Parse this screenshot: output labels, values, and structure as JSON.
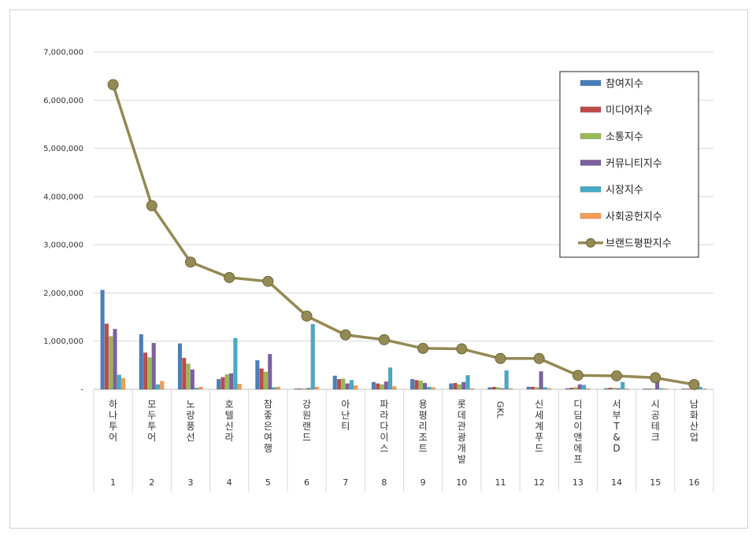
{
  "chart_data": {
    "type": "bar",
    "y_ticks": [
      "7,000,000",
      "6,000,000",
      "5,000,000",
      "4,000,000",
      "3,000,000",
      "2,000,000",
      "1,000,000",
      "-"
    ],
    "ylim": [
      0,
      7000000
    ],
    "grid": true,
    "legend_position": "top-right",
    "categories": [
      "하나투어",
      "모두투어",
      "노랑풍선",
      "호텔신라",
      "참좋은여행",
      "강원랜드",
      "아난티",
      "파라다이스",
      "용평리조트",
      "롯데관광개발",
      "GKL",
      "신세계푸드",
      "디딤이앤에프",
      "서부T&D",
      "시공테크",
      "남화산업"
    ],
    "ranks": [
      "1",
      "2",
      "3",
      "4",
      "5",
      "6",
      "7",
      "8",
      "9",
      "10",
      "11",
      "12",
      "13",
      "14",
      "15",
      "16"
    ],
    "series": [
      {
        "name": "참여지수",
        "color": "#4a7ebb",
        "values": [
          2060000,
          1140000,
          950000,
          210000,
          600000,
          15000,
          280000,
          150000,
          210000,
          120000,
          40000,
          50000,
          20000,
          20000,
          10000,
          10000
        ]
      },
      {
        "name": "미디어지수",
        "color": "#be4b48",
        "values": [
          1360000,
          760000,
          650000,
          250000,
          430000,
          15000,
          210000,
          120000,
          190000,
          130000,
          50000,
          50000,
          30000,
          30000,
          10000,
          10000
        ]
      },
      {
        "name": "소통지수",
        "color": "#98b954",
        "values": [
          1100000,
          660000,
          530000,
          310000,
          360000,
          10000,
          220000,
          100000,
          180000,
          100000,
          40000,
          40000,
          40000,
          30000,
          15000,
          15000
        ]
      },
      {
        "name": "커뮤니티지수",
        "color": "#7d60a0",
        "values": [
          1250000,
          960000,
          410000,
          330000,
          730000,
          25000,
          120000,
          160000,
          130000,
          150000,
          20000,
          370000,
          100000,
          20000,
          160000,
          10000
        ]
      },
      {
        "name": "시장지수",
        "color": "#46aac5",
        "values": [
          300000,
          100000,
          30000,
          1060000,
          40000,
          1350000,
          190000,
          450000,
          50000,
          290000,
          390000,
          40000,
          90000,
          150000,
          20000,
          50000
        ]
      },
      {
        "name": "사회공헌지수",
        "color": "#f59d56",
        "values": [
          230000,
          170000,
          50000,
          110000,
          50000,
          50000,
          80000,
          60000,
          40000,
          20000,
          20000,
          20000,
          20000,
          10000,
          10000,
          10000
        ]
      }
    ],
    "line": {
      "name": "브랜드평판지수",
      "color": "#938953",
      "values": [
        6320000,
        3810000,
        2640000,
        2320000,
        2240000,
        1520000,
        1130000,
        1030000,
        850000,
        840000,
        640000,
        640000,
        290000,
        280000,
        240000,
        100000
      ]
    }
  }
}
